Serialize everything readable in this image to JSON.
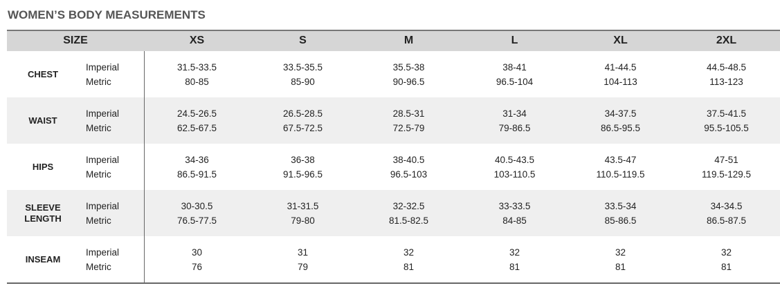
{
  "title": "WOMEN’S BODY MEASUREMENTS",
  "header": {
    "size_label": "SIZE",
    "sizes": [
      "XS",
      "S",
      "M",
      "L",
      "XL",
      "2XL"
    ]
  },
  "rows": [
    {
      "label": "CHEST",
      "units": [
        "Imperial",
        "Metric"
      ],
      "imperial": [
        "31.5-33.5",
        "33.5-35.5",
        "35.5-38",
        "38-41",
        "41-44.5",
        "44.5-48.5"
      ],
      "metric": [
        "80-85",
        "85-90",
        "90-96.5",
        "96.5-104",
        "104-113",
        "113-123"
      ]
    },
    {
      "label": "WAIST",
      "units": [
        "Imperial",
        "Metric"
      ],
      "imperial": [
        "24.5-26.5",
        "26.5-28.5",
        "28.5-31",
        "31-34",
        "34-37.5",
        "37.5-41.5"
      ],
      "metric": [
        "62.5-67.5",
        "67.5-72.5",
        "72.5-79",
        "79-86.5",
        "86.5-95.5",
        "95.5-105.5"
      ]
    },
    {
      "label": "HIPS",
      "units": [
        "Imperial",
        "Metric"
      ],
      "imperial": [
        "34-36",
        "36-38",
        "38-40.5",
        "40.5-43.5",
        "43.5-47",
        "47-51"
      ],
      "metric": [
        "86.5-91.5",
        "91.5-96.5",
        "96.5-103",
        "103-110.5",
        "110.5-119.5",
        "119.5-129.5"
      ]
    },
    {
      "label": "SLEEVE LENGTH",
      "units": [
        "Imperial",
        "Metric"
      ],
      "imperial": [
        "30-30.5",
        "31-31.5",
        "32-32.5",
        "33-33.5",
        "33.5-34",
        "34-34.5"
      ],
      "metric": [
        "76.5-77.5",
        "79-80",
        "81.5-82.5",
        "84-85",
        "85-86.5",
        "86.5-87.5"
      ]
    },
    {
      "label": "INSEAM",
      "units": [
        "Imperial",
        "Metric"
      ],
      "imperial": [
        "30",
        "31",
        "32",
        "32",
        "32",
        "32"
      ],
      "metric": [
        "76",
        "79",
        "81",
        "81",
        "81",
        "81"
      ]
    }
  ]
}
